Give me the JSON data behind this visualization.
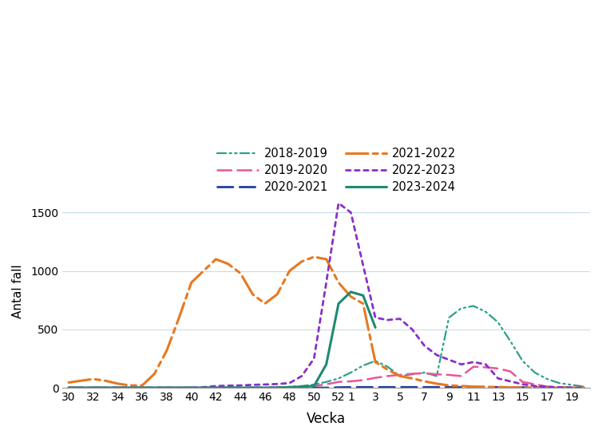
{
  "title": "",
  "xlabel": "Vecka",
  "ylabel": "Antal fall",
  "ylim": [
    0,
    1650
  ],
  "yticks": [
    0,
    500,
    1000,
    1500
  ],
  "background_color": "#ffffff",
  "grid_color": "#c8dce8",
  "x_labels": [
    "30",
    "32",
    "34",
    "36",
    "38",
    "40",
    "42",
    "44",
    "46",
    "48",
    "50",
    "52",
    "1",
    "3",
    "5",
    "7",
    "9",
    "11",
    "13",
    "15",
    "17",
    "19"
  ],
  "series": [
    {
      "label": "2018-2019",
      "color": "#2ca089",
      "linestyle": "dashdotdot",
      "linewidth": 1.6,
      "data_x": [
        30,
        31,
        32,
        33,
        34,
        35,
        36,
        37,
        38,
        39,
        40,
        41,
        42,
        43,
        44,
        45,
        46,
        47,
        48,
        49,
        50,
        51,
        52,
        1,
        2,
        3,
        4,
        5,
        6,
        7,
        8,
        9,
        10,
        11,
        12,
        13,
        14,
        15,
        16,
        17,
        18,
        19,
        20
      ],
      "data_y": [
        0,
        0,
        0,
        0,
        0,
        0,
        0,
        0,
        0,
        0,
        0,
        0,
        0,
        0,
        0,
        0,
        0,
        5,
        8,
        15,
        28,
        50,
        80,
        130,
        190,
        230,
        180,
        100,
        115,
        130,
        100,
        600,
        680,
        700,
        650,
        560,
        400,
        230,
        130,
        75,
        40,
        25,
        10
      ]
    },
    {
      "label": "2019-2020",
      "color": "#e8559a",
      "linestyle": "dashed",
      "linewidth": 1.8,
      "data_x": [
        30,
        31,
        32,
        33,
        34,
        35,
        36,
        37,
        38,
        39,
        40,
        41,
        42,
        43,
        44,
        45,
        46,
        47,
        48,
        49,
        50,
        51,
        52,
        1,
        2,
        3,
        4,
        5,
        6,
        7,
        8,
        9,
        10,
        11,
        12,
        13,
        14,
        15,
        16,
        17,
        18,
        19,
        20
      ],
      "data_y": [
        0,
        0,
        0,
        0,
        0,
        0,
        0,
        0,
        0,
        0,
        0,
        0,
        0,
        0,
        0,
        0,
        0,
        0,
        5,
        8,
        15,
        30,
        50,
        55,
        65,
        85,
        100,
        110,
        120,
        125,
        115,
        110,
        100,
        180,
        175,
        165,
        140,
        50,
        30,
        10,
        5,
        3,
        0
      ]
    },
    {
      "label": "2020-2021",
      "color": "#1e3ea1",
      "linestyle": "dashed",
      "linewidth": 2.0,
      "data_x": [
        30,
        31,
        32,
        33,
        34,
        35,
        36,
        37,
        38,
        39,
        40,
        41,
        42,
        43,
        44,
        45,
        46,
        47,
        48,
        49,
        50,
        51,
        52,
        1,
        2,
        3,
        4,
        5,
        6,
        7,
        8,
        9,
        10,
        11,
        12,
        13,
        14,
        15,
        16,
        17,
        18,
        19,
        20
      ],
      "data_y": [
        0,
        0,
        0,
        0,
        0,
        0,
        0,
        0,
        0,
        0,
        0,
        0,
        0,
        0,
        0,
        0,
        0,
        0,
        0,
        0,
        0,
        0,
        3,
        5,
        5,
        5,
        5,
        5,
        5,
        5,
        5,
        5,
        5,
        5,
        5,
        5,
        5,
        3,
        3,
        2,
        1,
        0,
        0
      ]
    },
    {
      "label": "2021-2022",
      "color": "#e87820",
      "linestyle": "dashdot",
      "linewidth": 2.2,
      "data_x": [
        30,
        31,
        32,
        33,
        34,
        35,
        36,
        37,
        38,
        39,
        40,
        41,
        42,
        43,
        44,
        45,
        46,
        47,
        48,
        49,
        50,
        51,
        52,
        1,
        2,
        3,
        4,
        5,
        6,
        7,
        8,
        9,
        10,
        11,
        12,
        13,
        14,
        15,
        16,
        17,
        18,
        19,
        20
      ],
      "data_y": [
        45,
        60,
        75,
        60,
        35,
        20,
        20,
        120,
        320,
        600,
        900,
        1000,
        1100,
        1060,
        980,
        800,
        720,
        800,
        1000,
        1080,
        1120,
        1100,
        900,
        780,
        720,
        220,
        155,
        100,
        80,
        55,
        35,
        20,
        15,
        10,
        8,
        5,
        3,
        2,
        1,
        0,
        0,
        0,
        0
      ]
    },
    {
      "label": "2022-2023",
      "color": "#8b2fc9",
      "linestyle": "dotted",
      "linewidth": 2.0,
      "data_x": [
        30,
        31,
        32,
        33,
        34,
        35,
        36,
        37,
        38,
        39,
        40,
        41,
        42,
        43,
        44,
        45,
        46,
        47,
        48,
        49,
        50,
        51,
        52,
        1,
        2,
        3,
        4,
        5,
        6,
        7,
        8,
        9,
        10,
        11,
        12,
        13,
        14,
        15,
        16,
        17,
        18,
        19,
        20
      ],
      "data_y": [
        0,
        0,
        0,
        0,
        0,
        0,
        0,
        0,
        0,
        0,
        0,
        5,
        15,
        18,
        20,
        25,
        28,
        32,
        40,
        100,
        250,
        900,
        1580,
        1500,
        1050,
        600,
        580,
        590,
        500,
        360,
        280,
        240,
        200,
        220,
        200,
        80,
        55,
        30,
        15,
        8,
        3,
        0,
        0
      ]
    },
    {
      "label": "2023-2024",
      "color": "#1e8a72",
      "linestyle": "solid",
      "linewidth": 2.2,
      "data_x": [
        30,
        31,
        32,
        33,
        34,
        35,
        36,
        37,
        38,
        39,
        40,
        41,
        42,
        43,
        44,
        45,
        46,
        47,
        48,
        49,
        50,
        51,
        52,
        1,
        2,
        3
      ],
      "data_y": [
        0,
        0,
        0,
        0,
        0,
        0,
        0,
        0,
        0,
        0,
        0,
        0,
        0,
        0,
        0,
        0,
        0,
        0,
        5,
        8,
        15,
        200,
        720,
        820,
        790,
        516
      ]
    }
  ]
}
